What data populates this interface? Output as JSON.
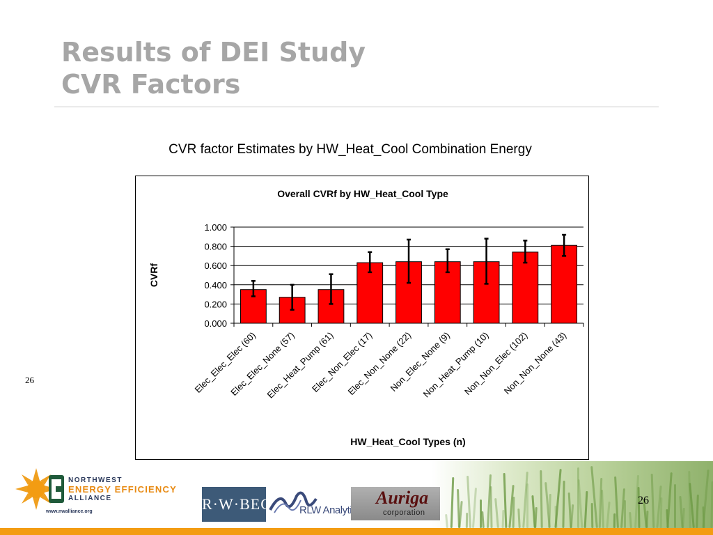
{
  "slide": {
    "title_line1": "Results of DEI Study",
    "title_line2": "CVR Factors",
    "subtitle": "CVR factor Estimates by HW_Heat_Cool Combination Energy",
    "slide_number_left": "26",
    "slide_number_right": "26"
  },
  "footer": {
    "nw_line1": "NORTHWEST",
    "nw_line2": "ENERGY EFFICIENCY",
    "nw_line3": "ALLIANCE",
    "nw_url": "www.nwalliance.org",
    "rwbeck_label": "R·W·BECK",
    "rlw_label": "RLW Analytics",
    "auriga_name": "Auriga",
    "auriga_sub": "corporation"
  },
  "colors": {
    "bar_fill": "#ff0000",
    "title_gray": "#a6a6a6",
    "accent_orange": "#f39c12"
  },
  "chart_data": {
    "type": "bar",
    "title": "Overall CVRf by HW_Heat_Cool Type",
    "xlabel": "HW_Heat_Cool Types (n)",
    "ylabel": "CVRf",
    "ylim": [
      0,
      1
    ],
    "yticks": [
      "0.000",
      "0.200",
      "0.400",
      "0.600",
      "0.800",
      "1.000"
    ],
    "grid": true,
    "legend": "none",
    "categories": [
      "Elec_Elec_Elec (60)",
      "Elec_Elec_None (57)",
      "Elec_Heat_Pump (61)",
      "Elec_Non_Elec (17)",
      "Elec_Non_None (22)",
      "Non_Elec_None (9)",
      "Non_Heat_Pump (10)",
      "Non_Non_Elec (102)",
      "Non_Non_None (43)"
    ],
    "values": [
      0.35,
      0.27,
      0.35,
      0.63,
      0.64,
      0.64,
      0.64,
      0.74,
      0.81
    ],
    "error_low": [
      0.28,
      0.14,
      0.2,
      0.53,
      0.42,
      0.53,
      0.41,
      0.63,
      0.7
    ],
    "error_high": [
      0.44,
      0.4,
      0.51,
      0.74,
      0.87,
      0.77,
      0.88,
      0.86,
      0.92
    ]
  }
}
